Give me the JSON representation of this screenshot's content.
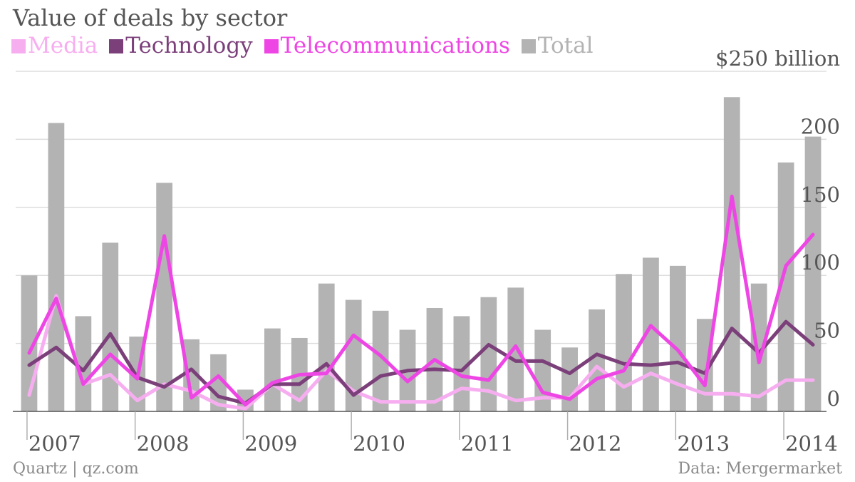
{
  "source": "Quartz | qz.com",
  "credit": "Data: Mergermarket",
  "chart_data": {
    "type": "bar",
    "title": "Value of deals by sector",
    "ylim": [
      0,
      250
    ],
    "y_ticks": [
      {
        "value": 0,
        "label": "0"
      },
      {
        "value": 50,
        "label": "50"
      },
      {
        "value": 100,
        "label": "100"
      },
      {
        "value": 150,
        "label": "150"
      },
      {
        "value": 200,
        "label": "200"
      },
      {
        "value": 250,
        "label": "$250 billion"
      }
    ],
    "x_tick_labels": [
      {
        "index": 0,
        "label": "2007"
      },
      {
        "index": 4,
        "label": "2008"
      },
      {
        "index": 8,
        "label": "2009"
      },
      {
        "index": 12,
        "label": "2010"
      },
      {
        "index": 16,
        "label": "2011"
      },
      {
        "index": 20,
        "label": "2012"
      },
      {
        "index": 24,
        "label": "2013"
      },
      {
        "index": 28,
        "label": "2014"
      }
    ],
    "categories": [
      "2007 Q1",
      "2007 Q2",
      "2007 Q3",
      "2007 Q4",
      "2008 Q1",
      "2008 Q2",
      "2008 Q3",
      "2008 Q4",
      "2009 Q1",
      "2009 Q2",
      "2009 Q3",
      "2009 Q4",
      "2010 Q1",
      "2010 Q2",
      "2010 Q3",
      "2010 Q4",
      "2011 Q1",
      "2011 Q2",
      "2011 Q3",
      "2011 Q4",
      "2012 Q1",
      "2012 Q2",
      "2012 Q3",
      "2012 Q4",
      "2013 Q1",
      "2013 Q2",
      "2013 Q3",
      "2013 Q4",
      "2014 Q1",
      "2014 Q2"
    ],
    "grid": true,
    "legend_position": "top-left",
    "series": [
      {
        "name": "Media",
        "kind": "line",
        "color": "#f7aef0",
        "values": [
          12,
          85,
          20,
          27,
          8,
          20,
          15,
          5,
          2,
          20,
          8,
          30,
          15,
          7,
          7,
          7,
          17,
          15,
          8,
          10,
          10,
          33,
          18,
          28,
          20,
          13,
          13,
          11,
          23,
          23
        ]
      },
      {
        "name": "Technology",
        "kind": "line",
        "color": "#7b3f7a",
        "values": [
          34,
          47,
          30,
          57,
          25,
          18,
          31,
          11,
          6,
          20,
          20,
          35,
          12,
          26,
          30,
          31,
          30,
          49,
          37,
          37,
          28,
          42,
          35,
          34,
          36,
          28,
          61,
          43,
          66,
          49
        ]
      },
      {
        "name": "Telecommunications",
        "kind": "line",
        "color": "#ee46e4",
        "values": [
          43,
          83,
          20,
          42,
          24,
          129,
          10,
          26,
          5,
          21,
          27,
          28,
          56,
          41,
          22,
          38,
          26,
          23,
          48,
          14,
          9,
          24,
          30,
          63,
          45,
          19,
          158,
          36,
          107,
          130
        ]
      },
      {
        "name": "Total",
        "kind": "bar",
        "color": "#b3b3b3",
        "values": [
          100,
          212,
          70,
          124,
          55,
          168,
          53,
          42,
          16,
          61,
          54,
          94,
          82,
          74,
          60,
          76,
          70,
          84,
          91,
          60,
          47,
          75,
          101,
          113,
          107,
          68,
          231,
          94,
          183,
          202
        ]
      }
    ]
  }
}
